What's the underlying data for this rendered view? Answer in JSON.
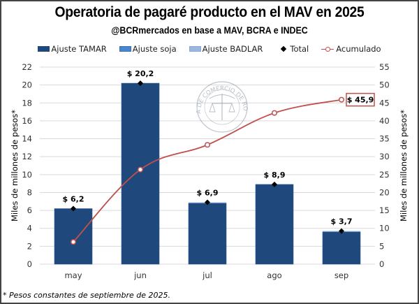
{
  "chart_data": {
    "type": "bar",
    "title": "Operatoria de pagaré producto en el MAV en 2025",
    "subtitle": "@BCRmercados en base a MAV, BCRA e INDEC",
    "categories": [
      "may",
      "jun",
      "jul",
      "ago",
      "sep"
    ],
    "series": [
      {
        "name": "Ajuste TAMAR",
        "type": "stacked-bar",
        "axis": "left",
        "color": "#1f497d",
        "values": [
          6.2,
          20.2,
          6.8,
          8.9,
          3.6
        ]
      },
      {
        "name": "Ajuste soja",
        "type": "stacked-bar",
        "axis": "left",
        "color": "#4a86d0",
        "values": [
          0.0,
          0.0,
          0.05,
          0.0,
          0.05
        ]
      },
      {
        "name": "Ajuste BADLAR",
        "type": "stacked-bar",
        "axis": "left",
        "color": "#9bb7dc",
        "values": [
          0.0,
          0.0,
          0.05,
          0.0,
          0.05
        ]
      },
      {
        "name": "Total",
        "type": "marker",
        "axis": "left",
        "color": "#000000",
        "values": [
          6.2,
          20.2,
          6.9,
          8.9,
          3.7
        ]
      },
      {
        "name": "Acumulado",
        "type": "line",
        "axis": "right",
        "color": "#c0504d",
        "values": [
          6.2,
          26.4,
          33.3,
          42.2,
          45.9
        ]
      }
    ],
    "data_labels": [
      "$ 6,2",
      "$ 20,2",
      "$ 6,9",
      "$ 8,9",
      "$ 3,7"
    ],
    "final_accumulated_label": "$ 45,9",
    "ylabel": "Miles de millones de pesos*",
    "y2label": "Miles de millones de pesos*",
    "ylim": [
      0,
      22
    ],
    "y2lim": [
      0,
      55
    ],
    "yticks": [
      0,
      2,
      4,
      6,
      8,
      10,
      12,
      14,
      16,
      18,
      20,
      22
    ],
    "y2ticks": [
      0,
      5,
      10,
      15,
      20,
      25,
      30,
      35,
      40,
      45,
      50,
      55
    ],
    "grid": true,
    "legend_position": "top"
  },
  "legend": [
    {
      "label": "Ajuste TAMAR",
      "kind": "swatch",
      "color": "#1f497d"
    },
    {
      "label": "Ajuste soja",
      "kind": "swatch",
      "color": "#4a86d0"
    },
    {
      "label": "Ajuste BADLAR",
      "kind": "swatch",
      "color": "#9bb7dc"
    },
    {
      "label": "Total",
      "kind": "diamond",
      "color": "#000000"
    },
    {
      "label": "Acumulado",
      "kind": "line-marker",
      "color": "#c0504d"
    }
  ],
  "watermark": "BOLSA DE COMERCIO DE ROSARIO",
  "footnote": "* Pesos constantes de septiembre de 2025."
}
